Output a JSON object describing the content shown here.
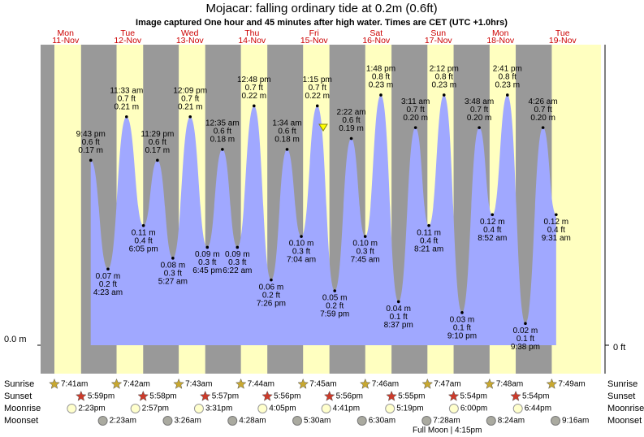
{
  "chart_data": {
    "type": "area",
    "title": "Mojacar: falling  ordinary tide at 0.2m (0.6ft)",
    "subtitle": "Image captured One hour and 45 minutes after high water. Times are CET (UTC +1.0hrs)",
    "days": [
      {
        "weekday": "Mon",
        "date": "11-Nov"
      },
      {
        "weekday": "Tue",
        "date": "12-Nov"
      },
      {
        "weekday": "Wed",
        "date": "13-Nov"
      },
      {
        "weekday": "Thu",
        "date": "14-Nov"
      },
      {
        "weekday": "Fri",
        "date": "15-Nov"
      },
      {
        "weekday": "Sat",
        "date": "16-Nov"
      },
      {
        "weekday": "Sun",
        "date": "17-Nov"
      },
      {
        "weekday": "Mon",
        "date": "18-Nov"
      },
      {
        "weekday": "Tue",
        "date": "19-Nov"
      }
    ],
    "tides": {
      "times": [
        "9:43 pm",
        "4:23 am",
        "11:33 am",
        "6:05 pm",
        "11:29 pm",
        "5:27 am",
        "12:09 pm",
        "6:45 pm",
        "12:35 am",
        "6:22 am",
        "12:48 pm",
        "7:26 pm",
        "1:34 am",
        "7:04 am",
        "1:15 pm",
        "7:59 pm",
        "2:22 am",
        "7:45 am",
        "1:48 pm",
        "8:37 pm",
        "3:11 am",
        "8:21 am",
        "2:12 pm",
        "9:10 pm",
        "3:48 am",
        "8:52 am",
        "2:41 pm",
        "9:38 pm",
        "4:26 am",
        "9:31 am"
      ],
      "values": [
        0.17,
        0.07,
        0.21,
        0.11,
        0.17,
        0.08,
        0.21,
        0.09,
        0.18,
        0.09,
        0.22,
        0.06,
        0.18,
        0.1,
        0.22,
        0.05,
        0.19,
        0.1,
        0.23,
        0.04,
        0.2,
        0.11,
        0.23,
        0.03,
        0.2,
        0.12,
        0.23,
        0.02,
        0.2,
        0.12
      ],
      "value_labels": [
        "0.17 m",
        "0.07 m",
        "0.21 m",
        "0.11 m",
        "0.17 m",
        "0.08 m",
        "0.21 m",
        "0.09 m",
        "0.18 m",
        "0.09 m",
        "0.22 m",
        "0.06 m",
        "0.18 m",
        "0.10 m",
        "0.22 m",
        "0.05 m",
        "0.19 m",
        "0.10 m",
        "0.23 m",
        "0.04 m",
        "0.20 m",
        "0.11 m",
        "0.23 m",
        "0.03 m",
        "0.20 m",
        "0.12 m",
        "0.23 m",
        "0.02 m",
        "0.20 m",
        "0.12 m"
      ],
      "feet_labels": [
        "0.6 ft",
        "0.2 ft",
        "0.7 ft",
        "0.4 ft",
        "0.6 ft",
        "0.3 ft",
        "0.7 ft",
        "0.3 ft",
        "0.6 ft",
        "0.3 ft",
        "0.7 ft",
        "0.2 ft",
        "0.6 ft",
        "0.3 ft",
        "0.7 ft",
        "0.2 ft",
        "0.6 ft",
        "0.3 ft",
        "0.8 ft",
        "0.1 ft",
        "0.7 ft",
        "0.4 ft",
        "0.8 ft",
        "0.1 ft",
        "0.7 ft",
        "0.4 ft",
        "0.8 ft",
        "0.1 ft",
        "0.7 ft",
        "0.4 ft"
      ]
    },
    "color": "#a0a8ff",
    "ylim": [
      0,
      0.28
    ],
    "yticks": [
      {
        "value": 0,
        "label": "0.0 m"
      }
    ],
    "y2lim": [
      0,
      0.92
    ],
    "y2ticks": [
      {
        "value": 0,
        "label": "0 ft"
      }
    ]
  },
  "sun_moon": {
    "row_labels": [
      "Sunrise",
      "Sunset",
      "Moonrise",
      "Moonset"
    ],
    "sunrise": [
      "7:41am",
      "7:42am",
      "7:43am",
      "7:44am",
      "7:45am",
      "7:46am",
      "7:47am",
      "7:48am",
      "7:49am"
    ],
    "sunset": [
      "5:59pm",
      "5:58pm",
      "5:57pm",
      "5:56pm",
      "5:56pm",
      "5:55pm",
      "5:54pm",
      "5:54pm"
    ],
    "moonrise": [
      "2:23pm",
      "2:57pm",
      "3:31pm",
      "4:05pm",
      "4:41pm",
      "5:19pm",
      "6:00pm",
      "6:44pm"
    ],
    "moonset": [
      "2:23am",
      "3:26am",
      "4:28am",
      "5:30am",
      "6:30am",
      "7:28am",
      "8:24am",
      "9:16am"
    ],
    "full_moon": "Full Moon | 4:15pm"
  }
}
